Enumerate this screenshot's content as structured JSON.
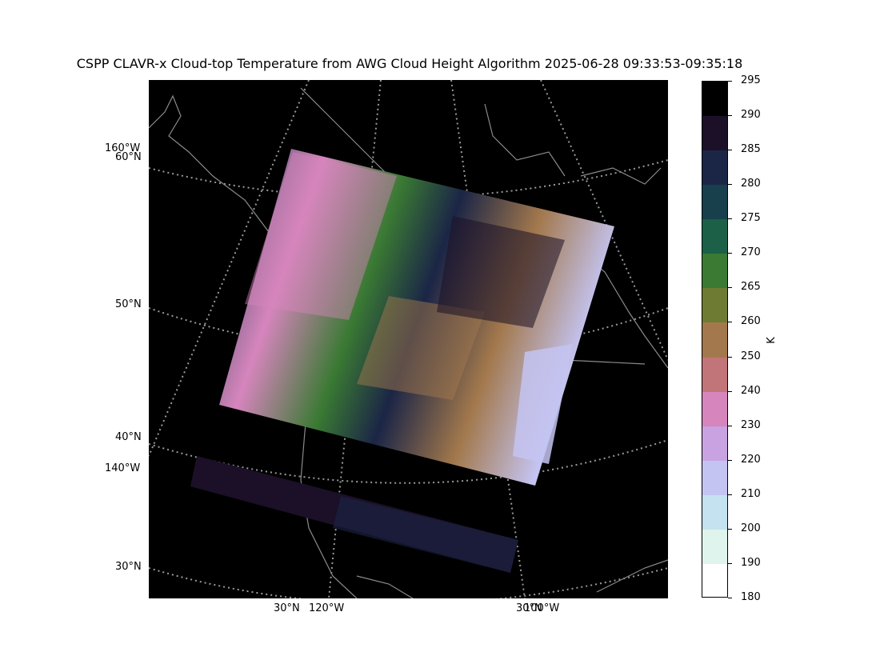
{
  "title": "CSPP CLAVR-x Cloud-top Temperature from AWG Cloud Height Algorithm 2025-06-28 09:33:53-09:35:18",
  "map": {
    "projection": "lambert-conformal",
    "background": "#000000",
    "coastline_color": "#8a8a8a",
    "gridline_color": "#9a9a9a",
    "left_labels": [
      "160°W",
      "60°N",
      "50°N",
      "40°N",
      "140°W",
      "30°N"
    ],
    "bottom_labels": [
      "30°N",
      "120°W",
      "30°N",
      "100°W"
    ]
  },
  "colorbar": {
    "unit": "K",
    "ticks": [
      "295",
      "290",
      "285",
      "280",
      "275",
      "270",
      "265",
      "260",
      "250",
      "240",
      "230",
      "220",
      "210",
      "200",
      "190",
      "180"
    ],
    "colors": [
      "#000000",
      "#1b1027",
      "#1b2546",
      "#173f4c",
      "#1b6047",
      "#3a7a33",
      "#6e7c33",
      "#a2784c",
      "#c27578",
      "#d685bd",
      "#c9a2e2",
      "#c4c4f2",
      "#c4e2f0",
      "#dff4ec",
      "#ffffff"
    ]
  }
}
